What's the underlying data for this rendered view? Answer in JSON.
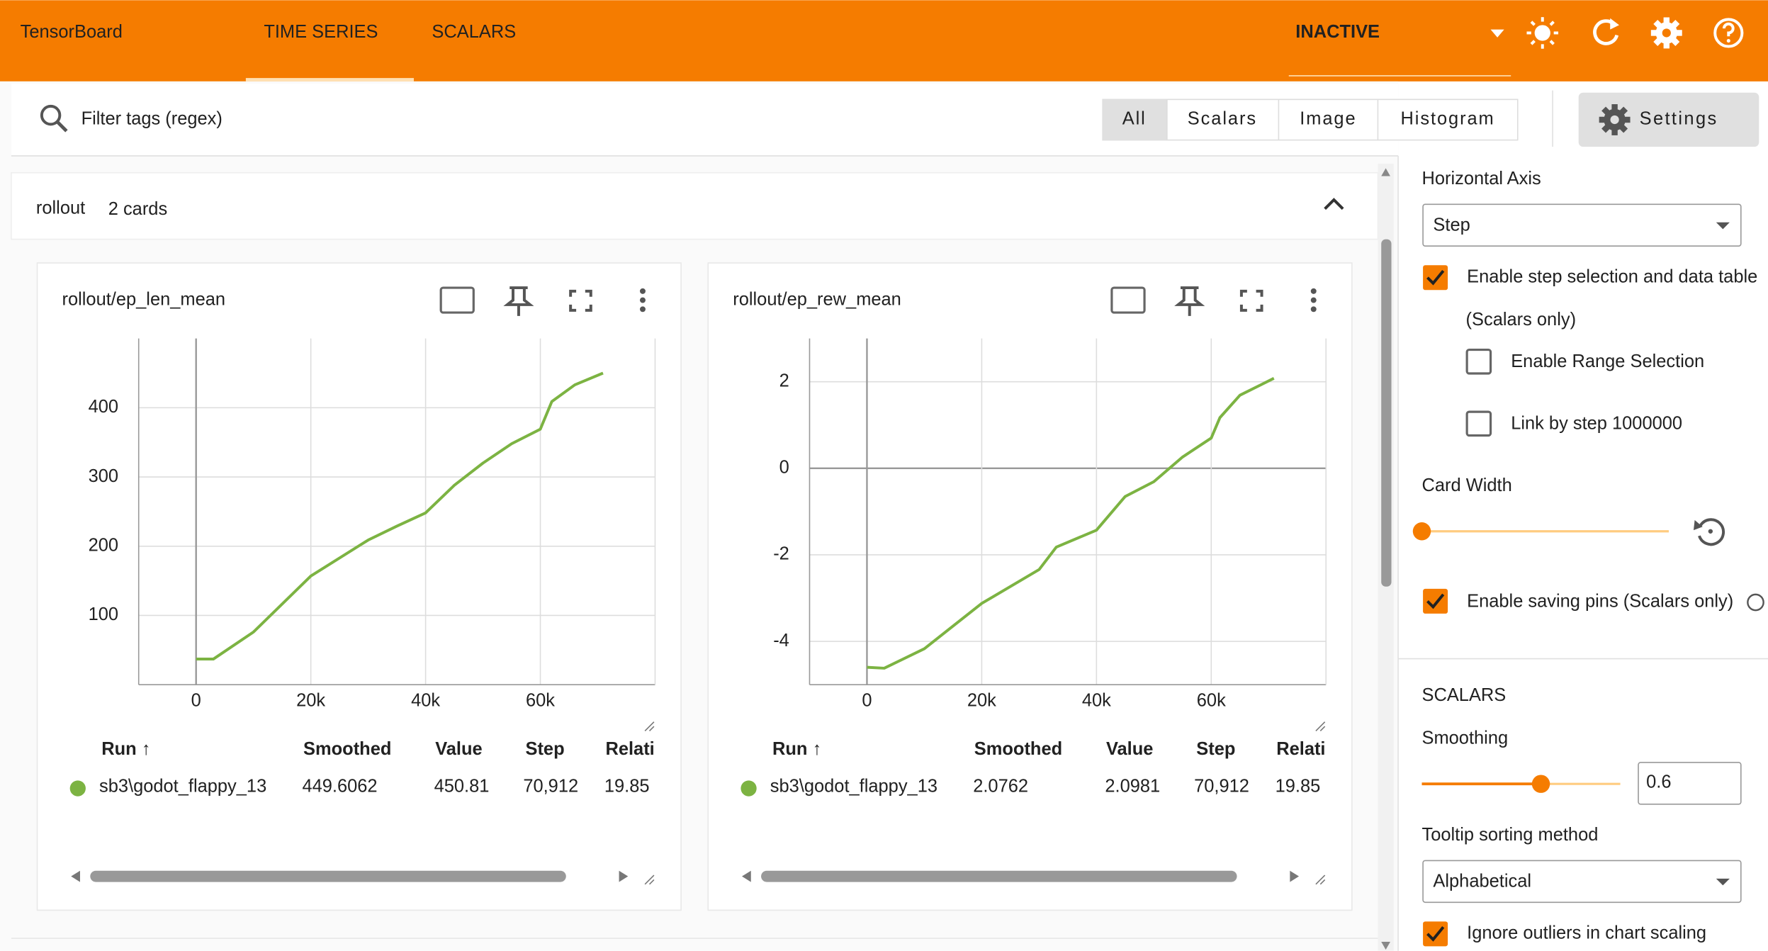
{
  "header": {
    "title": "TensorBoard",
    "tabs": [
      "TIME SERIES",
      "SCALARS"
    ],
    "status": "INACTIVE"
  },
  "filter": {
    "placeholder": "Filter tags (regex)",
    "types": [
      "All",
      "Scalars",
      "Image",
      "Histogram"
    ],
    "settings_button": "Settings"
  },
  "group": {
    "name": "rollout",
    "count": "2 cards"
  },
  "cards": [
    {
      "title": "rollout/ep_len_mean",
      "chart": {
        "type": "line",
        "x": [
          0,
          3000,
          10000,
          20000,
          30000,
          35000,
          40000,
          45000,
          50000,
          55000,
          60000,
          62000,
          66000,
          70912
        ],
        "series": [
          {
            "color": "#7cb342",
            "values": [
              37,
              37,
              76,
              157,
              209,
              229,
              248,
              288,
              320,
              348,
              369,
              409,
              433,
              450
            ]
          }
        ],
        "xlim": [
          -10000,
          80000
        ],
        "ylim": [
          0,
          500
        ],
        "xticks": [
          0,
          {
            "value": 20000,
            "label": "20k"
          },
          {
            "value": 40000,
            "label": "40k"
          },
          {
            "value": 60000,
            "label": "60k"
          }
        ],
        "yticks": [
          100,
          200,
          300,
          400
        ],
        "grid": true
      },
      "table": {
        "columns": [
          "Run ↑",
          "Smoothed",
          "Value",
          "Step",
          "Relati"
        ],
        "row": [
          "sb3\\godot_flappy_13",
          "449.6062",
          "450.81",
          "70,912",
          "19.85"
        ]
      }
    },
    {
      "title": "rollout/ep_rew_mean",
      "chart": {
        "type": "line",
        "x": [
          0,
          3000,
          10000,
          20000,
          30000,
          33000,
          40000,
          45000,
          50000,
          55000,
          60000,
          61500,
          65000,
          70912
        ],
        "series": [
          {
            "color": "#7cb342",
            "values": [
              -4.6,
              -4.62,
              -4.17,
              -3.12,
              -2.34,
              -1.82,
              -1.43,
              -0.65,
              -0.31,
              0.26,
              0.7,
              1.17,
              1.69,
              2.08
            ]
          }
        ],
        "xlim": [
          -10000,
          80000
        ],
        "ylim": [
          -5,
          3
        ],
        "xticks": [
          0,
          {
            "value": 20000,
            "label": "20k"
          },
          {
            "value": 40000,
            "label": "40k"
          },
          {
            "value": 60000,
            "label": "60k"
          }
        ],
        "yticks": [
          -4,
          -2,
          0,
          2
        ],
        "grid": true
      },
      "table": {
        "columns": [
          "Run ↑",
          "Smoothed",
          "Value",
          "Step",
          "Relati"
        ],
        "row": [
          "sb3\\godot_flappy_13",
          "2.0762",
          "2.0981",
          "70,912",
          "19.85"
        ]
      }
    }
  ],
  "settings": {
    "horizontal_axis": {
      "label": "Horizontal Axis",
      "value": "Step"
    },
    "step_selection": {
      "label": "Enable step selection and data table",
      "note": "(Scalars only)",
      "checked": true
    },
    "range_selection": {
      "label": "Enable Range Selection",
      "checked": false
    },
    "link_by_step": {
      "label": "Link by step 1000000",
      "checked": false
    },
    "card_width": {
      "label": "Card Width"
    },
    "saving_pins": {
      "label": "Enable saving pins (Scalars only)",
      "checked": true
    },
    "scalars_heading": "SCALARS",
    "smoothing": {
      "label": "Smoothing",
      "value": 0.6
    },
    "tooltip_sorting": {
      "label": "Tooltip sorting method",
      "value": "Alphabetical"
    },
    "ignore_outliers": {
      "label": "Ignore outliers in chart scaling",
      "checked": true
    }
  }
}
